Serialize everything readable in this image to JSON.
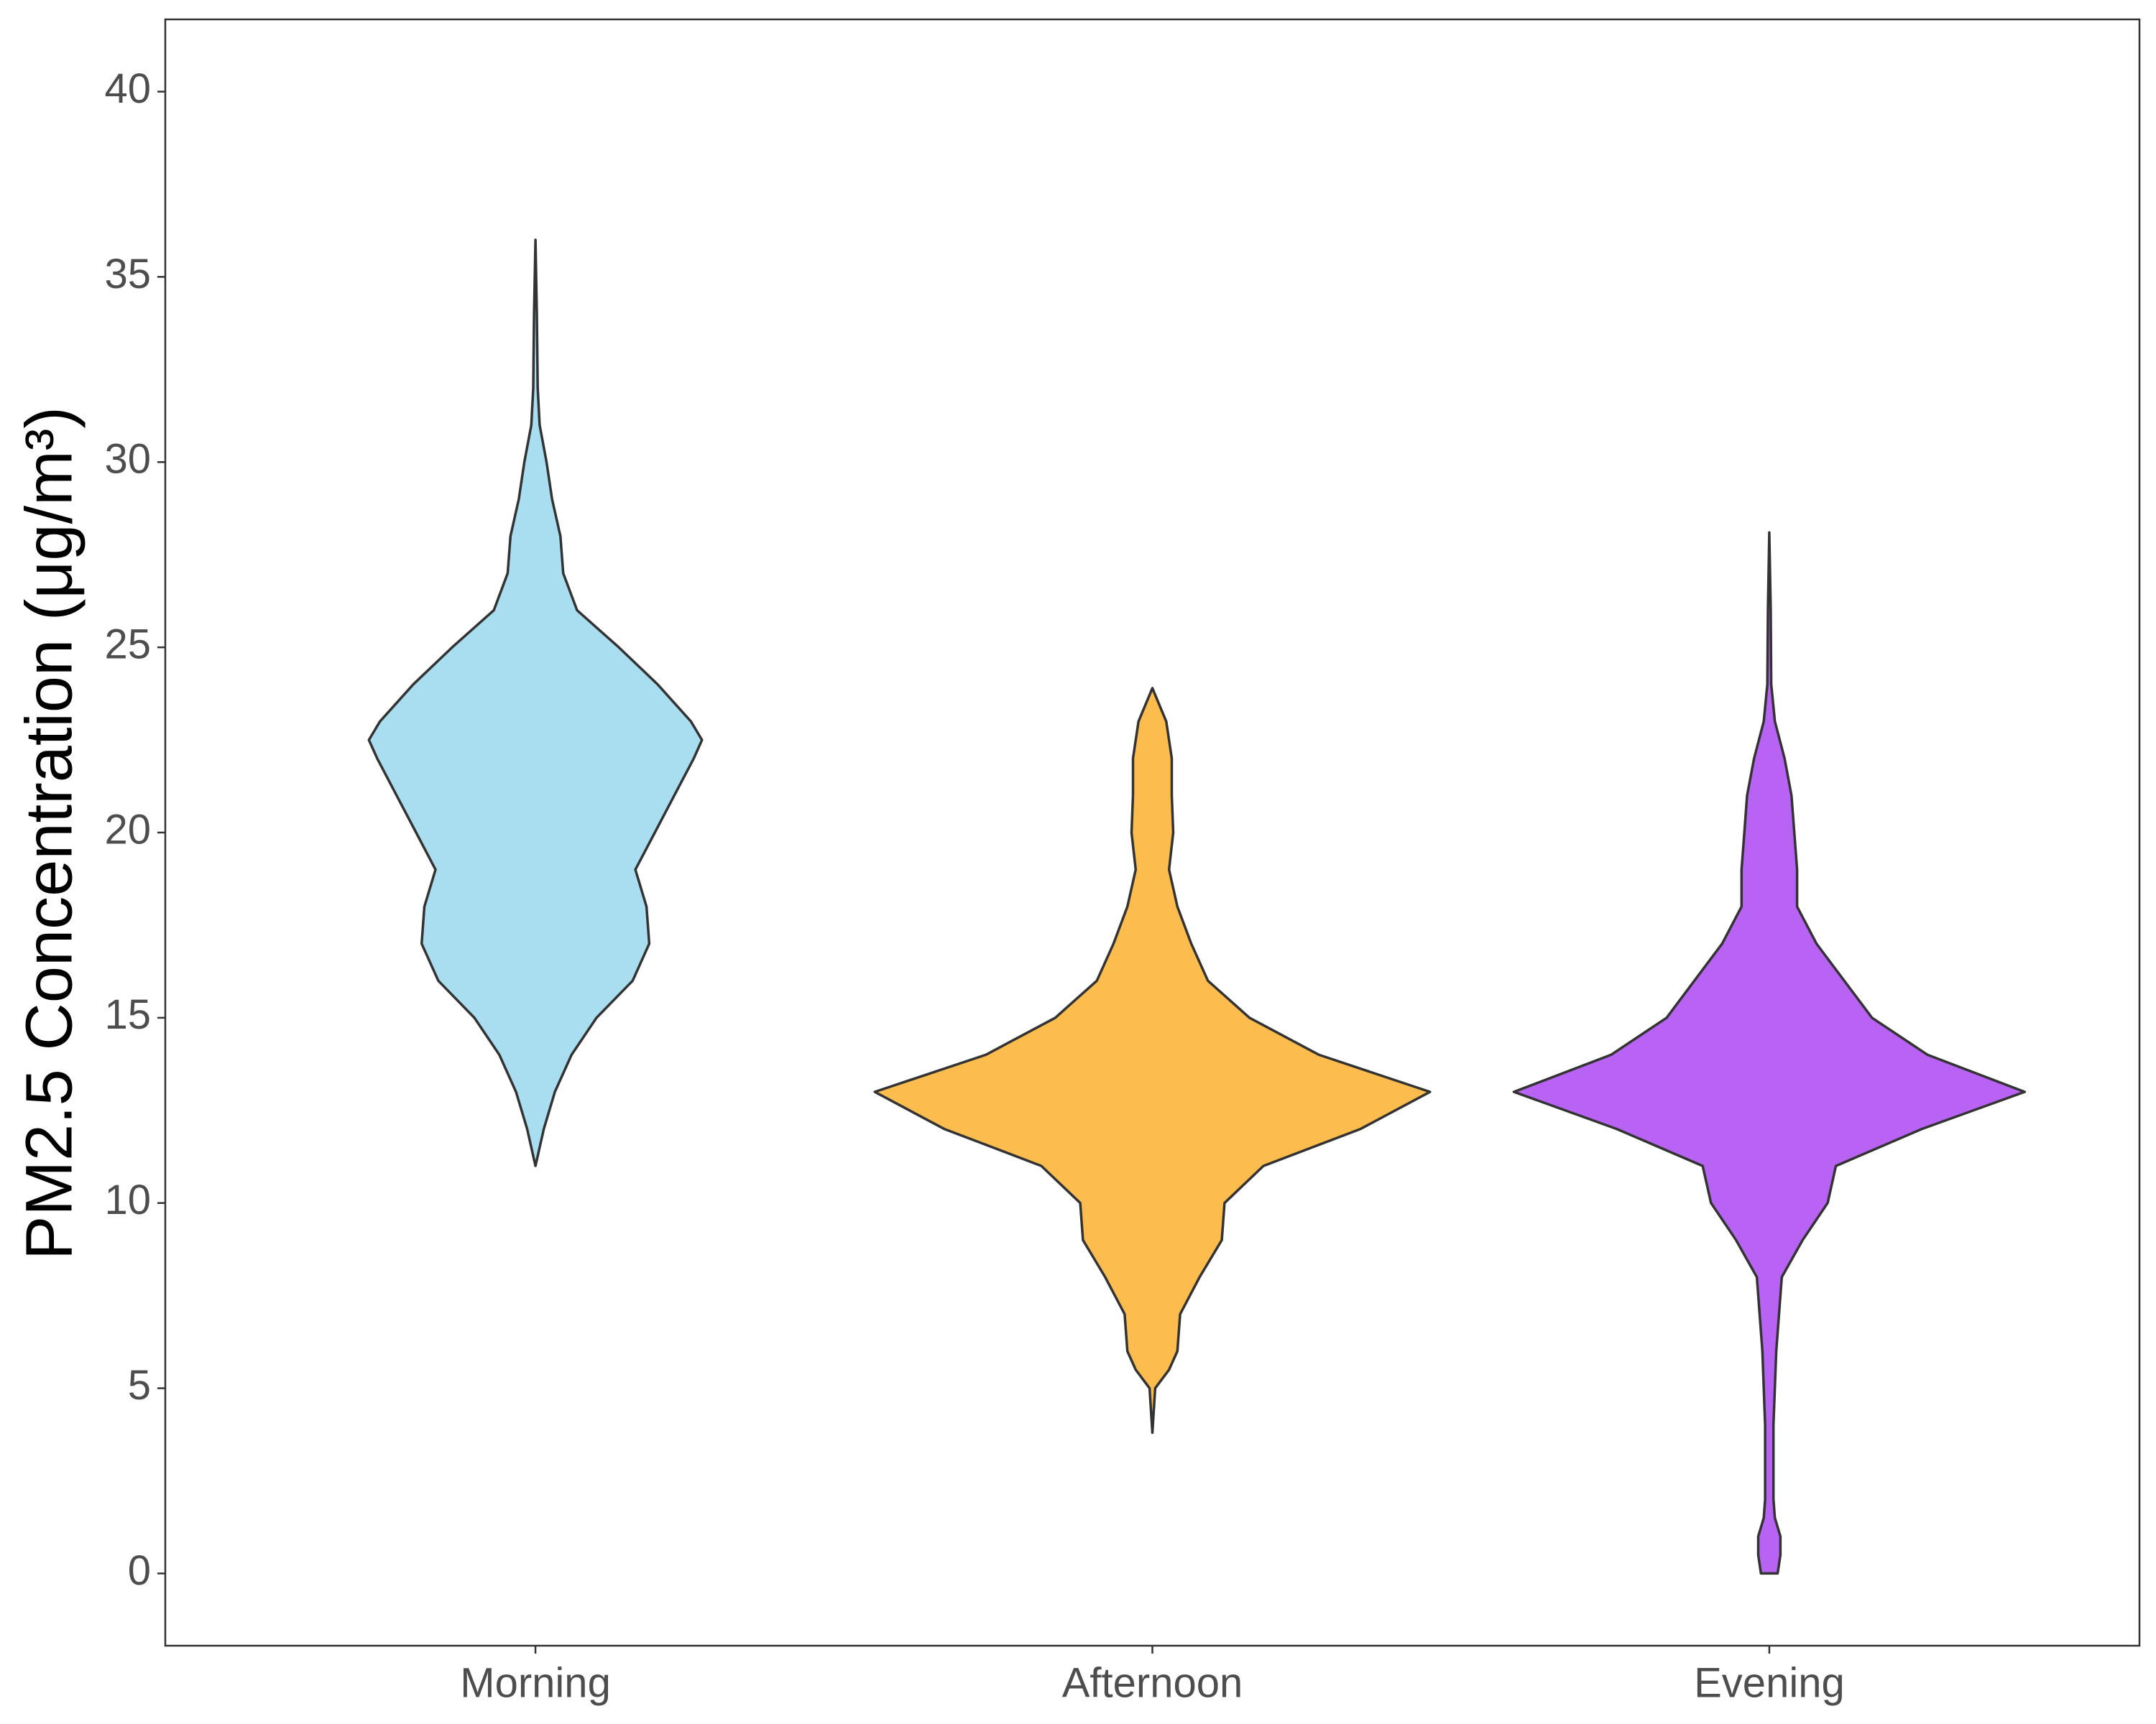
{
  "chart_data": {
    "type": "violin",
    "y_label": "PM2.5 Concentration (μg/m³)",
    "categories": [
      "Morning",
      "Afternoon",
      "Evening"
    ],
    "series": [
      {
        "color": "#a9def0",
        "y": [
          11,
          12,
          13,
          14,
          15,
          16,
          17,
          18,
          19,
          20,
          21,
          22,
          22.5,
          23,
          24,
          25,
          26,
          27,
          28,
          29,
          30,
          31,
          32,
          34,
          36
        ],
        "density": [
          0,
          0.03,
          0.07,
          0.13,
          0.22,
          0.35,
          0.41,
          0.4,
          0.36,
          0.43,
          0.5,
          0.57,
          0.6,
          0.56,
          0.44,
          0.3,
          0.15,
          0.1,
          0.09,
          0.06,
          0.04,
          0.015,
          0.008,
          0.005,
          0
        ]
      },
      {
        "color": "#fdbd4e",
        "y": [
          3.8,
          5,
          5.5,
          6,
          7,
          8,
          9,
          10,
          11,
          12,
          13,
          14,
          15,
          16,
          17,
          18,
          19,
          20,
          21,
          22,
          23,
          23.9
        ],
        "density": [
          0,
          0.01,
          0.06,
          0.09,
          0.1,
          0.17,
          0.25,
          0.26,
          0.4,
          0.75,
          1,
          0.6,
          0.35,
          0.2,
          0.14,
          0.09,
          0.06,
          0.075,
          0.07,
          0.07,
          0.05,
          0
        ]
      },
      {
        "color": "#b963f5",
        "y": [
          0,
          0.5,
          1,
          1.5,
          2,
          4,
          6,
          8,
          9,
          10,
          11,
          12,
          13,
          14,
          15,
          16,
          17,
          18,
          19,
          20,
          21,
          22,
          23,
          24,
          26,
          28.1
        ],
        "density": [
          0.03,
          0.04,
          0.04,
          0.02,
          0.015,
          0.015,
          0.025,
          0.045,
          0.12,
          0.21,
          0.24,
          0.55,
          0.92,
          0.57,
          0.37,
          0.27,
          0.17,
          0.1,
          0.1,
          0.09,
          0.08,
          0.055,
          0.02,
          0.007,
          0.005,
          0
        ]
      }
    ],
    "ylim": [
      -1.95,
      41.95
    ],
    "yticks": [
      0,
      5,
      10,
      15,
      20,
      25,
      30,
      35,
      40
    ]
  }
}
